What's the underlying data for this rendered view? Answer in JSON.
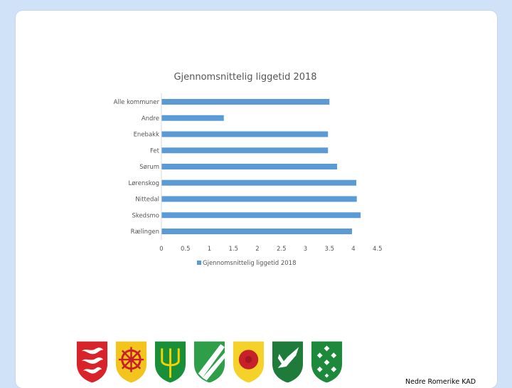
{
  "chart_data": {
    "type": "bar",
    "orientation": "horizontal",
    "title": "Gjennomsnittelig liggetid 2018",
    "categories": [
      "Alle kommuner",
      "Andre",
      "Enebakk",
      "Fet",
      "Sørum",
      "Lørenskog",
      "Nittedal",
      "Skedsmo",
      "Rælingen"
    ],
    "series": [
      {
        "name": "Gjennomsnittelig liggetid 2018",
        "values": [
          3.5,
          1.3,
          3.47,
          3.47,
          3.66,
          4.06,
          4.07,
          4.15,
          3.97
        ]
      }
    ],
    "xlim": [
      0,
      4.5
    ],
    "xticks": [
      "0",
      "0.5",
      "1",
      "1.5",
      "2",
      "2.5",
      "3",
      "3.5",
      "4",
      "4.5"
    ],
    "grid": false,
    "legend_position": "bottom",
    "bar_color": "#5b9bd5"
  },
  "crests": [
    {
      "name": "crest-1",
      "colors": [
        "#d9232a",
        "#ffffff"
      ]
    },
    {
      "name": "crest-2",
      "colors": [
        "#f3c41b",
        "#c8202b"
      ]
    },
    {
      "name": "crest-3",
      "colors": [
        "#1a8f3a",
        "#f5d200"
      ]
    },
    {
      "name": "crest-4",
      "colors": [
        "#2e9e49",
        "#ffffff"
      ]
    },
    {
      "name": "crest-5",
      "colors": [
        "#f4d22a",
        "#c8202b"
      ]
    },
    {
      "name": "crest-6",
      "colors": [
        "#1f7b3a",
        "#ffffff"
      ]
    },
    {
      "name": "crest-7",
      "colors": [
        "#1d8a3b",
        "#ffffff"
      ]
    }
  ],
  "footer": "Nedre Romerike KAD"
}
